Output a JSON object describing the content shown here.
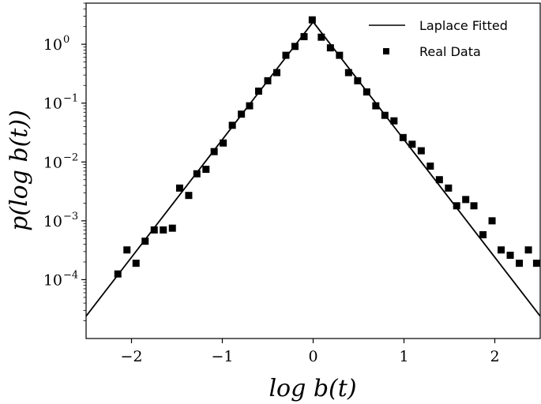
{
  "chart_data": {
    "type": "scatter",
    "xlabel": "log b(t)",
    "ylabel": "p(log b(t))",
    "xlim": [
      -2.5,
      2.5
    ],
    "ylim": [
      1e-05,
      5
    ],
    "yscale": "log",
    "grid": false,
    "legend_position": "top-right",
    "x_ticks": [
      -2,
      -1,
      0,
      1,
      2
    ],
    "x_tick_labels": [
      "−2",
      "−1",
      "0",
      "1",
      "2"
    ],
    "y_ticks": [
      0.0001,
      0.001,
      0.01,
      0.1,
      1
    ],
    "y_tick_labels": [
      {
        "base": "10",
        "exp": "−4"
      },
      {
        "base": "10",
        "exp": "−3"
      },
      {
        "base": "10",
        "exp": "−2"
      },
      {
        "base": "10",
        "exp": "−1"
      },
      {
        "base": "10",
        "exp": "0"
      }
    ],
    "series": [
      {
        "name": "Laplace Fitted",
        "kind": "line",
        "color": "#000000",
        "x": [
          -2.5,
          0,
          2.5
        ],
        "y": [
          2.4e-05,
          2.4,
          2.4e-05
        ]
      },
      {
        "name": "Real Data",
        "kind": "scatter",
        "color": "#000000",
        "marker": "square",
        "x": [
          -2.15,
          -2.05,
          -1.95,
          -1.85,
          -1.75,
          -1.65,
          -1.55,
          -1.47,
          -1.37,
          -1.28,
          -1.18,
          -1.09,
          -0.99,
          -0.89,
          -0.79,
          -0.7,
          -0.6,
          -0.5,
          -0.4,
          -0.3,
          -0.2,
          -0.1,
          -0.01,
          0.09,
          0.19,
          0.29,
          0.39,
          0.49,
          0.59,
          0.69,
          0.79,
          0.89,
          0.99,
          1.09,
          1.19,
          1.29,
          1.39,
          1.49,
          1.58,
          1.68,
          1.77,
          1.87,
          1.97,
          2.07,
          2.17,
          2.27,
          2.37,
          2.46
        ],
        "y": [
          0.000125,
          0.00032,
          0.00019,
          0.00045,
          0.0007,
          0.0007,
          0.00075,
          0.0036,
          0.0027,
          0.0063,
          0.0075,
          0.015,
          0.021,
          0.042,
          0.065,
          0.09,
          0.16,
          0.24,
          0.33,
          0.65,
          0.92,
          1.35,
          2.6,
          1.32,
          0.87,
          0.65,
          0.33,
          0.24,
          0.155,
          0.09,
          0.062,
          0.05,
          0.026,
          0.02,
          0.0155,
          0.0085,
          0.005,
          0.0036,
          0.0018,
          0.0023,
          0.0018,
          0.00058,
          0.001,
          0.00032,
          0.00026,
          0.00019,
          0.00032,
          0.00019
        ]
      }
    ]
  }
}
